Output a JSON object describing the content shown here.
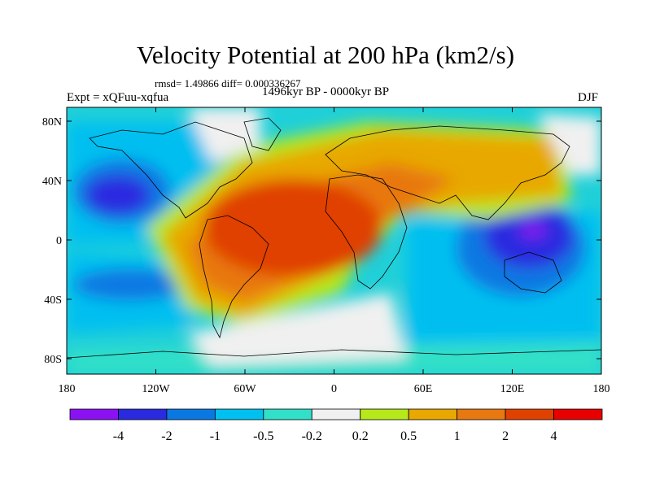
{
  "header": {
    "title": "Velocity Potential at 200 hPa (km2/s)",
    "stats": "rmsd= 1.49866 diff= 0.000336267",
    "left_label": "Expt = xQFuu-xqfua",
    "center_label": "1496kyr BP - 0000kyr BP",
    "right_label": "DJF"
  },
  "map": {
    "lon_ticks": [
      "180",
      "120W",
      "60W",
      "0",
      "60E",
      "120E",
      "180"
    ],
    "lat_ticks": [
      "80N",
      "40N",
      "0",
      "40S",
      "80S"
    ],
    "ocean_color": "#f0f0f0",
    "coastline_color": "#000000"
  },
  "colorbar": {
    "colors": [
      "#8a12f2",
      "#2a2ae0",
      "#0a78e2",
      "#00c0f0",
      "#30e0c8",
      "#f0f0f0",
      "#b6e81a",
      "#e8a800",
      "#e87810",
      "#e04000",
      "#e80000"
    ],
    "labels": [
      "-4",
      "-2",
      "-1",
      "-0.5",
      "-0.2",
      "0.2",
      "0.5",
      "1",
      "2",
      "4"
    ]
  }
}
